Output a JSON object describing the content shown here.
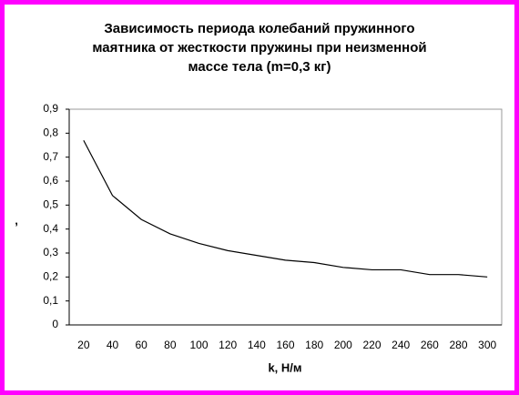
{
  "chart_data": {
    "type": "line",
    "title": [
      "Зависимость периода колебаний пружинного",
      "маятника от жесткости пружины при неизменной",
      "массе тела (m=0,3 кг)"
    ],
    "x_label": "k, Н/м",
    "y_label": ",",
    "categories": [
      "20",
      "40",
      "60",
      "80",
      "100",
      "120",
      "140",
      "160",
      "180",
      "200",
      "220",
      "240",
      "260",
      "280",
      "300"
    ],
    "values": [
      0.77,
      0.54,
      0.44,
      0.38,
      0.34,
      0.31,
      0.29,
      0.27,
      0.26,
      0.24,
      0.23,
      0.23,
      0.21,
      0.21,
      0.2
    ],
    "color": "#000000",
    "ylim": [
      0,
      0.9
    ],
    "yticks": [
      0,
      {
        "value": 0.1,
        "label": "0,1"
      },
      {
        "value": 0.2,
        "label": "0,2"
      },
      {
        "value": 0.3,
        "label": "0,3"
      },
      {
        "value": 0.4,
        "label": "0,4"
      },
      {
        "value": 0.5,
        "label": "0,5"
      },
      {
        "value": 0.6,
        "label": "0,6"
      },
      {
        "value": 0.7,
        "label": "0,7"
      },
      {
        "value": 0.8,
        "label": "0,8"
      },
      {
        "value": 0.9,
        "label": "0,9"
      }
    ],
    "grid": false
  }
}
